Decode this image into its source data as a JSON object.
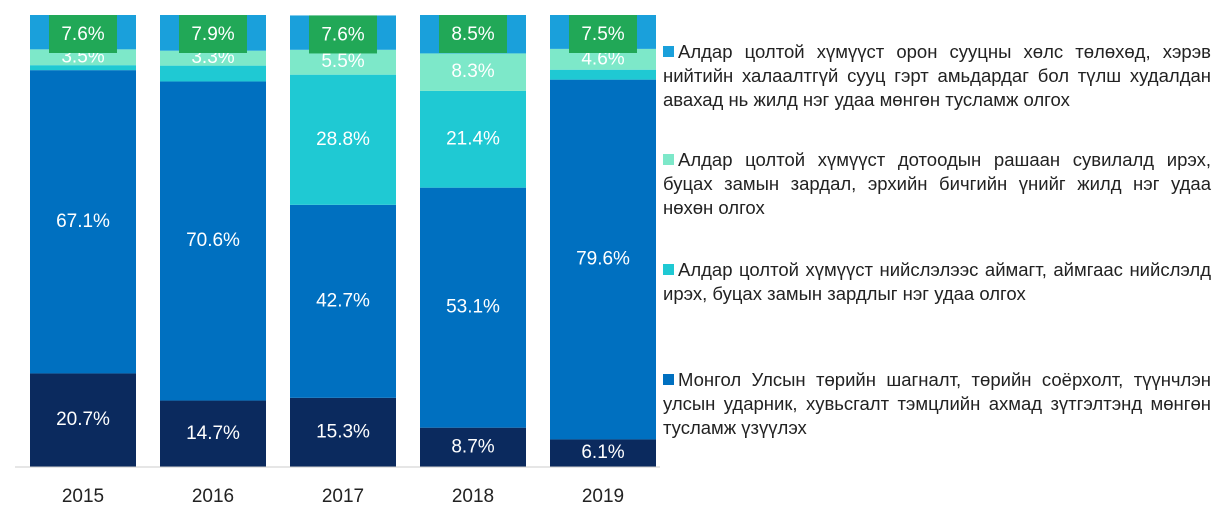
{
  "chart_data": {
    "type": "stacked_bar",
    "categories": [
      "2015",
      "2016",
      "2017",
      "2018",
      "2019"
    ],
    "ylim": [
      0,
      100
    ],
    "series": [
      {
        "color": "#0b2a5e",
        "values": [
          20.7,
          14.7,
          15.3,
          8.7,
          6.1
        ],
        "value_labels": [
          "20.7%",
          "14.7%",
          "15.3%",
          "8.7%",
          "6.1%"
        ]
      },
      {
        "name": "Монгол Улсын төрийн шагналт, төрийн соёрхолт, түүнчлэн улсын ударник, хувьсгалт тэмцлийн ахмад зүтгэлтэнд мөнгөн тусламж үзүүлэх",
        "color": "#0070c0",
        "values": [
          67.1,
          70.6,
          42.7,
          53.1,
          79.6
        ],
        "value_labels": [
          "67.1%",
          "70.6%",
          "42.7%",
          "53.1%",
          "79.6%"
        ]
      },
      {
        "name": "Алдар  цолтой хүмүүст нийслэлээс аймагт, аймгаас нийслэлд ирэх, буцах замын зардлыг нэг удаа олгох",
        "color": "#1fc9d3",
        "values": [
          1.1,
          3.5,
          28.8,
          21.4,
          2.2
        ],
        "value_labels": [
          null,
          null,
          "28.8%",
          "21.4%",
          null
        ]
      },
      {
        "name": "Алдар цолтой хүмүүст дотоодын рашаан сувилалд ирэх, буцах замын зардал, эрхийн бичгийн үнийг жилд нэг удаа нөхөн олгох",
        "color": "#7de8c9",
        "values": [
          3.5,
          3.3,
          5.5,
          8.3,
          4.6
        ],
        "value_labels": [
          "3.5%",
          "3.3%",
          "5.5%",
          "8.3%",
          "4.6%"
        ]
      },
      {
        "name": "Алдар цолтой хүмүүст орон сууцны хөлс төлөхөд, хэрэв нийтийн халаалтгүй сууц гэрт амьдардаг бол түлш худалдан авахад нь жилд нэг удаа мөнгөн тусламж олгох",
        "color": "#1aa0db",
        "label_background": "#21a857",
        "values": [
          7.6,
          7.9,
          7.6,
          8.5,
          7.5
        ],
        "value_labels": [
          "7.6%",
          "7.9%",
          "7.6%",
          "8.5%",
          "7.5%"
        ]
      }
    ]
  }
}
